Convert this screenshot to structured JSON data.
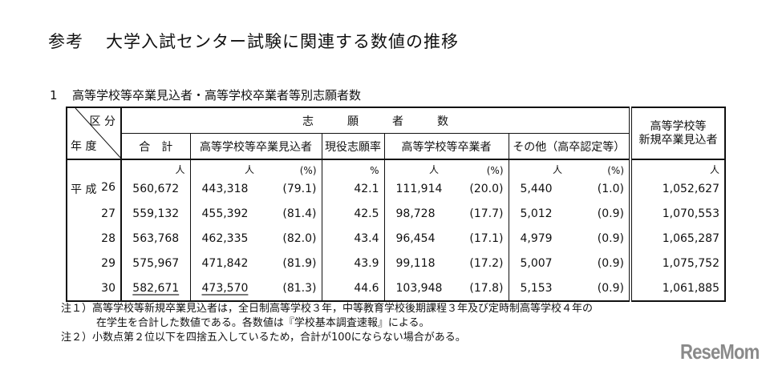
{
  "title": {
    "prefix": "参考",
    "text": "大学入試センター試験に関連する数値の推移"
  },
  "section": {
    "number": "1",
    "text": "高等学校等卒業見込者・高等学校卒業者等別志願者数"
  },
  "table": {
    "corner": {
      "top": "区 分",
      "bottom": "年 度"
    },
    "group_header": "志　　　願　　　者　　　数",
    "new_header": [
      "高等学校等",
      "新規卒業見込者"
    ],
    "columns": {
      "total": "合　計",
      "mikomi": "高等学校等卒業見込者",
      "rate": "現役志願率",
      "sotsugyo": "高等学校等卒業者",
      "other": "その他（高卒認定等）"
    },
    "units": {
      "person": "人",
      "pct": "(%)",
      "percent": "%"
    },
    "era": "平 成",
    "rows": [
      {
        "year": "26",
        "total": "560,672",
        "mikomi": "443,318",
        "mikomi_pct": "(79.1)",
        "rate": "42.1",
        "sotsugyo": "111,914",
        "sotsugyo_pct": "(20.0)",
        "other": "5,440",
        "other_pct": "(1.0)",
        "new": "1,052,627"
      },
      {
        "year": "27",
        "total": "559,132",
        "mikomi": "455,392",
        "mikomi_pct": "(81.4)",
        "rate": "42.5",
        "sotsugyo": "98,728",
        "sotsugyo_pct": "(17.7)",
        "other": "5,012",
        "other_pct": "(0.9)",
        "new": "1,070,553"
      },
      {
        "year": "28",
        "total": "563,768",
        "mikomi": "462,335",
        "mikomi_pct": "(82.0)",
        "rate": "43.4",
        "sotsugyo": "96,454",
        "sotsugyo_pct": "(17.1)",
        "other": "4,979",
        "other_pct": "(0.9)",
        "new": "1,065,287"
      },
      {
        "year": "29",
        "total": "575,967",
        "mikomi": "471,842",
        "mikomi_pct": "(81.9)",
        "rate": "43.9",
        "sotsugyo": "99,118",
        "sotsugyo_pct": "(17.2)",
        "other": "5,007",
        "other_pct": "(0.9)",
        "new": "1,075,752"
      },
      {
        "year": "30",
        "total": "582,671",
        "mikomi": "473,570",
        "mikomi_pct": "(81.3)",
        "rate": "44.6",
        "sotsugyo": "103,948",
        "sotsugyo_pct": "(17.8)",
        "other": "5,153",
        "other_pct": "(0.9)",
        "new": "1,061,885"
      }
    ]
  },
  "notes": [
    "注１）高等学校等新規卒業見込者は，全日制高等学校３年，中等教育学校後期課程３年及び定時制高等学校４年の",
    "在学生を合計した数値である。各数値は『学校基本調査速報』による。",
    "注２）小数点第２位以下を四捨五入しているため，合計が100にならない場合がある。"
  ],
  "logo": "ReseMom"
}
